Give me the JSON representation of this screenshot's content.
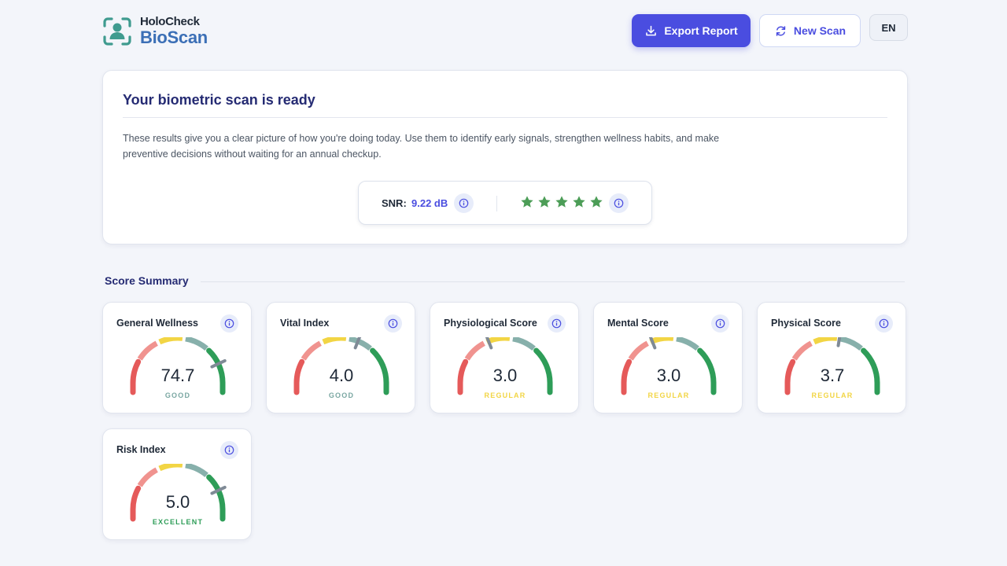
{
  "brand": {
    "line1": "HoloCheck",
    "line2": "BioScan"
  },
  "header": {
    "export_label": "Export Report",
    "new_scan_label": "New Scan",
    "language": "EN"
  },
  "intro": {
    "title": "Your biometric scan is ready",
    "description": "These results give you a clear picture of how you're doing today. Use them to identify early signals, strengthen wellness habits, and make preventive decisions without waiting for an annual checkup.",
    "snr_label": "SNR:",
    "snr_value": "9.22 dB",
    "quality_stars": 5
  },
  "summary": {
    "title": "Score Summary",
    "cards": [
      {
        "title": "General Wellness",
        "value": "74.7",
        "status": "GOOD",
        "status_color": "#7aa7a2",
        "position": 0.86
      },
      {
        "title": "Vital Index",
        "value": "4.0",
        "status": "GOOD",
        "status_color": "#7aa7a2",
        "position": 0.62
      },
      {
        "title": "Physiological Score",
        "value": "3.0",
        "status": "REGULAR",
        "status_color": "#f2d544",
        "position": 0.38
      },
      {
        "title": "Mental Score",
        "value": "3.0",
        "status": "REGULAR",
        "status_color": "#f2d544",
        "position": 0.38
      },
      {
        "title": "Physical Score",
        "value": "3.7",
        "status": "REGULAR",
        "status_color": "#f2d544",
        "position": 0.55
      },
      {
        "title": "Risk Index",
        "value": "5.0",
        "status": "EXCELLENT",
        "status_color": "#2e9d58",
        "position": 0.86
      }
    ]
  },
  "colors": {
    "accent": "#4a4de0",
    "star": "#4c9d57",
    "gauge_segments": [
      "#e55a5a",
      "#f0938f",
      "#f2d544",
      "#87b0ab",
      "#2e9d58"
    ]
  }
}
